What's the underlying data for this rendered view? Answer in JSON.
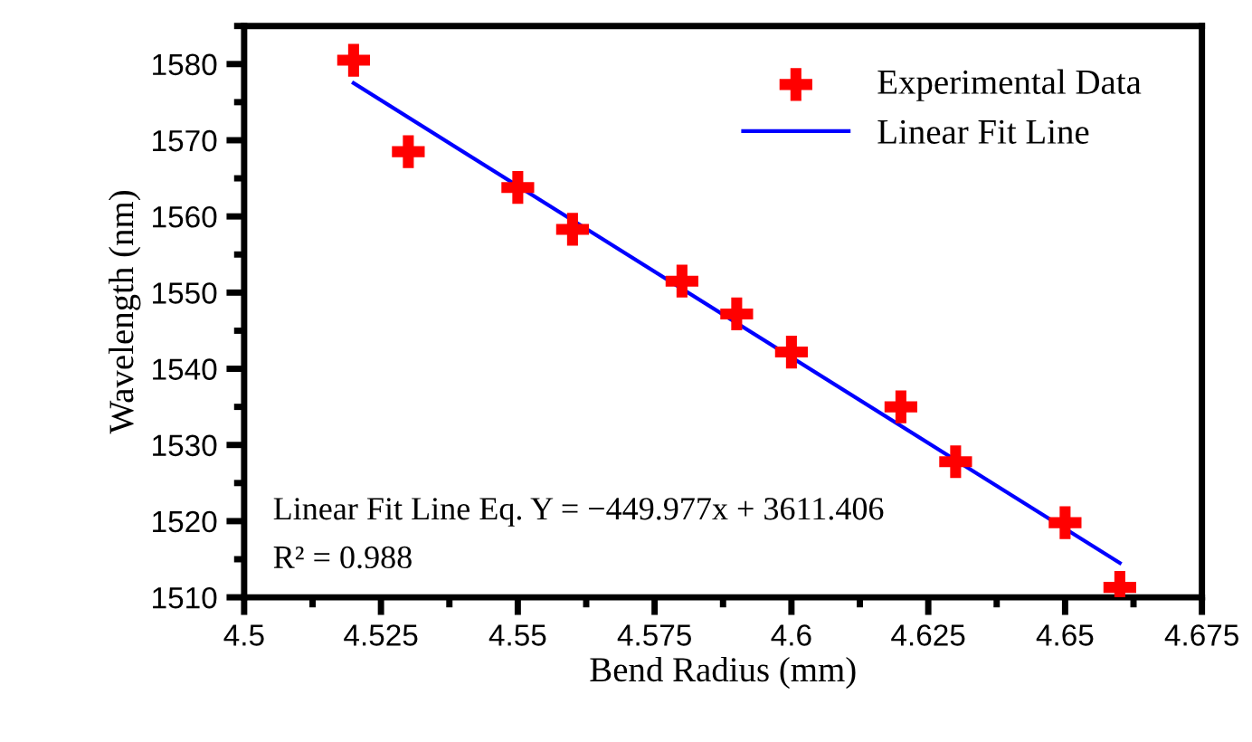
{
  "chart_data": {
    "type": "scatter",
    "xlabel": "Bend Radius (mm)",
    "ylabel": "Wavelength (nm)",
    "xlim": [
      4.5,
      4.675
    ],
    "xticks": [
      4.5,
      4.525,
      4.55,
      4.575,
      4.6,
      4.625,
      4.65,
      4.675
    ],
    "ylim": [
      1510,
      1585
    ],
    "yticks": [
      1510,
      1520,
      1530,
      1540,
      1550,
      1560,
      1570,
      1580
    ],
    "grid": false,
    "legend": "top right",
    "series": [
      {
        "name": "Experimental Data",
        "marker": "cross",
        "color": "#ff0000",
        "x": [
          4.52,
          4.53,
          4.55,
          4.56,
          4.58,
          4.59,
          4.6,
          4.62,
          4.63,
          4.65,
          4.66
        ],
        "values": [
          1580.5,
          1568.5,
          1563.8,
          1558.3,
          1551.5,
          1547.2,
          1542.2,
          1535.0,
          1527.8,
          1519.8,
          1511.3
        ]
      },
      {
        "name": "Linear Fit Line",
        "type": "line",
        "marker": "none",
        "line_style": "solid",
        "color": "#0000ff",
        "x": [
          4.52,
          4.66
        ],
        "values": [
          1577.5,
          1514.5
        ]
      }
    ],
    "annotations": [
      "Linear Fit Line Eq. Y = −449.977x + 3611.406",
      "R² = 0.988"
    ]
  }
}
